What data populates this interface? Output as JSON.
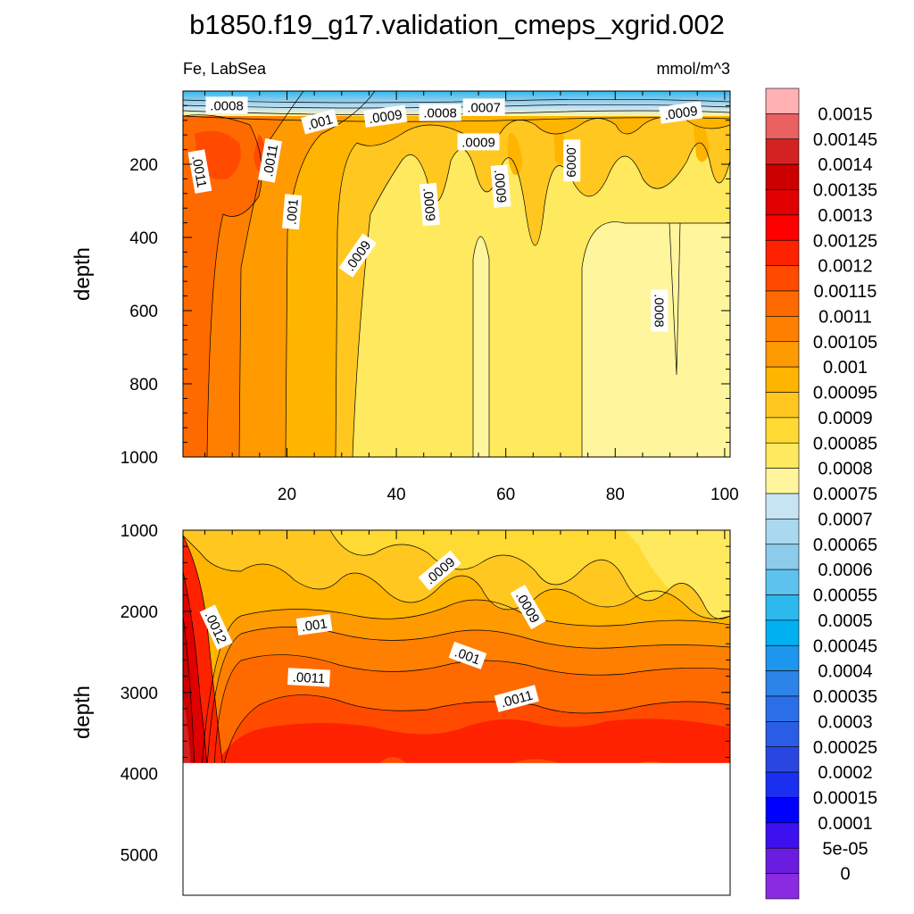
{
  "chart_data": {
    "type": "contour",
    "title": "b1850.f19_g17.validation_cmeps_xgrid.002",
    "variable_label": "Fe, LabSea",
    "units_label": "mmol/m^3",
    "ylabel": "depth",
    "upper_panel": {
      "xlim": [
        1,
        101
      ],
      "ylim": [
        0,
        1000
      ],
      "x_ticks": [
        "20",
        "40",
        "60",
        "80",
        "100"
      ],
      "x_tick_values": [
        20,
        40,
        60,
        80,
        100
      ],
      "y_ticks": [
        "200",
        "400",
        "600",
        "800",
        "1000"
      ],
      "y_tick_values": [
        200,
        400,
        600,
        800,
        1000
      ],
      "contour_labels": [
        {
          "text": ".0008",
          "x": 9,
          "y": 40,
          "angle": 0
        },
        {
          "text": ".001",
          "x": 26,
          "y": 85,
          "angle": -15
        },
        {
          "text": ".0009",
          "x": 38,
          "y": 70,
          "angle": -8
        },
        {
          "text": ".0008",
          "x": 48,
          "y": 60,
          "angle": 0
        },
        {
          "text": ".0007",
          "x": 56,
          "y": 45,
          "angle": 0
        },
        {
          "text": ".0009",
          "x": 92,
          "y": 60,
          "angle": -8
        },
        {
          "text": ".0009",
          "x": 55,
          "y": 140,
          "angle": 0
        },
        {
          "text": ".0011",
          "x": 4,
          "y": 220,
          "angle": 80
        },
        {
          "text": ".0011",
          "x": 17,
          "y": 190,
          "angle": -80
        },
        {
          "text": ".001",
          "x": 21,
          "y": 330,
          "angle": -85
        },
        {
          "text": ".0009",
          "x": 72,
          "y": 190,
          "angle": 90
        },
        {
          "text": ".0009",
          "x": 59,
          "y": 260,
          "angle": 85
        },
        {
          "text": ".0009",
          "x": 46,
          "y": 310,
          "angle": 85
        },
        {
          "text": ".0009",
          "x": 33,
          "y": 450,
          "angle": -55
        },
        {
          "text": ".0008",
          "x": 88,
          "y": 600,
          "angle": 90
        }
      ],
      "column_profiles_sampled": [
        {
          "x": 3,
          "surface": 0.0008,
          "upper": 0.00115,
          "deep": 0.00108
        },
        {
          "x": 20,
          "surface": 0.0008,
          "upper": 0.00105,
          "deep": 0.00103
        },
        {
          "x": 40,
          "surface": 0.00075,
          "upper": 0.00092,
          "deep": 0.0009
        },
        {
          "x": 60,
          "surface": 0.00075,
          "upper": 0.00095,
          "deep": 0.00078
        },
        {
          "x": 80,
          "surface": 0.00075,
          "upper": 0.00095,
          "deep": 0.00082
        },
        {
          "x": 100,
          "surface": 0.0007,
          "upper": 0.0009,
          "deep": 0.00082
        }
      ]
    },
    "lower_panel": {
      "xlim": [
        1,
        101
      ],
      "ylim": [
        1000,
        5500
      ],
      "y_ticks": [
        "1000",
        "2000",
        "3000",
        "4000",
        "5000"
      ],
      "y_tick_values": [
        1000,
        2000,
        3000,
        4000,
        5000
      ],
      "data_bottom_depth": 3870,
      "contour_labels": [
        {
          "text": ".0009",
          "x": 48,
          "y": 1500,
          "angle": -40
        },
        {
          "text": ".0009",
          "x": 64,
          "y": 1950,
          "angle": 60
        },
        {
          "text": ".0012",
          "x": 7,
          "y": 2200,
          "angle": 65
        },
        {
          "text": ".001",
          "x": 25,
          "y": 2170,
          "angle": -8
        },
        {
          "text": ".001",
          "x": 53,
          "y": 2550,
          "angle": 20
        },
        {
          "text": ".0011",
          "x": 24,
          "y": 2820,
          "angle": 3
        },
        {
          "text": ".0011",
          "x": 62,
          "y": 3080,
          "angle": -15
        }
      ],
      "column_profiles_sampled": [
        {
          "x": 3,
          "at_1000": 0.00108,
          "at_3500": 0.00135
        },
        {
          "x": 30,
          "at_1000": 0.00095,
          "at_3500": 0.0012
        },
        {
          "x": 60,
          "at_1000": 0.00085,
          "at_3500": 0.00118
        },
        {
          "x": 100,
          "at_1000": 0.00082,
          "at_3500": 0.00115
        }
      ]
    },
    "colorbar": {
      "levels": [
        "0.0015",
        "0.00145",
        "0.0014",
        "0.00135",
        "0.0013",
        "0.00125",
        "0.0012",
        "0.00115",
        "0.0011",
        "0.00105",
        "0.001",
        "0.00095",
        "0.0009",
        "0.00085",
        "0.0008",
        "0.00075",
        "0.0007",
        "0.00065",
        "0.0006",
        "0.00055",
        "0.0005",
        "0.00045",
        "0.0004",
        "0.00035",
        "0.0003",
        "0.00025",
        "0.0002",
        "0.00015",
        "0.0001",
        "5e-05",
        "0"
      ],
      "colors": [
        "#ffb1b4",
        "#e86060",
        "#d42222",
        "#cc0000",
        "#e00000",
        "#ff0000",
        "#ff2200",
        "#ff4a00",
        "#ff6a00",
        "#ff8000",
        "#ff9a00",
        "#ffb400",
        "#ffc71f",
        "#ffda33",
        "#ffe95e",
        "#fff59d",
        "#c7e4f2",
        "#a9d8ef",
        "#8ccbeb",
        "#5ec2ef",
        "#2db9ee",
        "#00b0f0",
        "#1e96ee",
        "#2c83e8",
        "#2a6fe8",
        "#2a5de6",
        "#2a46e0",
        "#1a2ff0",
        "#0000ff",
        "#3d10f0",
        "#6a1de0",
        "#8a2be2"
      ]
    }
  }
}
